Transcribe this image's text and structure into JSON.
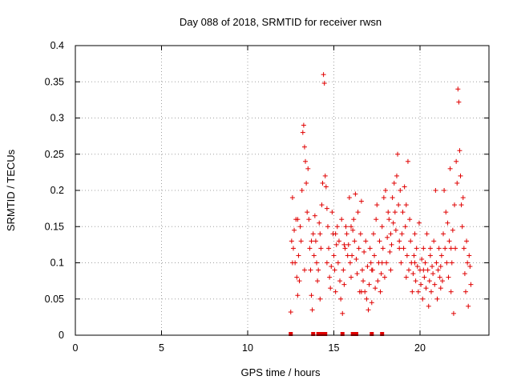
{
  "chart_data": {
    "type": "scatter",
    "title": "Day 088 of 2018, SRMTID for receiver rwsn",
    "xlabel": "GPS time / hours",
    "ylabel": "SRMTID / TECUs",
    "xlim": [
      0,
      24
    ],
    "ylim": [
      0,
      0.4
    ],
    "x_ticks": [
      0,
      5,
      10,
      15,
      20
    ],
    "y_ticks": [
      0,
      0.05,
      0.1,
      0.15,
      0.2,
      0.25,
      0.3,
      0.35,
      0.4
    ],
    "x_tick_labels": [
      "0",
      "5",
      "10",
      "15",
      "20"
    ],
    "y_tick_labels": [
      "0",
      "0.05",
      "0.1",
      "0.15",
      "0.2",
      "0.25",
      "0.3",
      "0.35",
      "0.4"
    ],
    "grid": true,
    "marker": "+",
    "color": "#e00000",
    "series": [
      {
        "name": "SRMTID",
        "points": [
          [
            12.5,
            0.032
          ],
          [
            12.55,
            0.13
          ],
          [
            12.6,
            0.19
          ],
          [
            12.65,
            0.12
          ],
          [
            12.7,
            0.145
          ],
          [
            12.75,
            0.1
          ],
          [
            12.8,
            0.16
          ],
          [
            12.85,
            0.08
          ],
          [
            12.9,
            0.055
          ],
          [
            12.95,
            0.11
          ],
          [
            13.0,
            0.075
          ],
          [
            13.05,
            0.15
          ],
          [
            13.1,
            0.13
          ],
          [
            13.15,
            0.2
          ],
          [
            13.2,
            0.28
          ],
          [
            13.25,
            0.29
          ],
          [
            13.3,
            0.26
          ],
          [
            13.35,
            0.24
          ],
          [
            13.4,
            0.21
          ],
          [
            13.45,
            0.17
          ],
          [
            13.5,
            0.23
          ],
          [
            13.55,
            0.16
          ],
          [
            13.6,
            0.12
          ],
          [
            13.65,
            0.09
          ],
          [
            13.7,
            0.055
          ],
          [
            13.75,
            0.035
          ],
          [
            13.8,
            0.14
          ],
          [
            13.85,
            0.11
          ],
          [
            13.9,
            0.165
          ],
          [
            13.95,
            0.13
          ],
          [
            14.0,
            0.1
          ],
          [
            14.05,
            0.075
          ],
          [
            14.1,
            0.09
          ],
          [
            14.15,
            0.155
          ],
          [
            14.2,
            0.14
          ],
          [
            14.25,
            0.12
          ],
          [
            14.3,
            0.18
          ],
          [
            14.35,
            0.21
          ],
          [
            14.4,
            0.36
          ],
          [
            14.45,
            0.348
          ],
          [
            14.5,
            0.22
          ],
          [
            14.55,
            0.205
          ],
          [
            14.6,
            0.175
          ],
          [
            14.65,
            0.15
          ],
          [
            14.7,
            0.12
          ],
          [
            14.75,
            0.08
          ],
          [
            14.8,
            0.065
          ],
          [
            14.85,
            0.095
          ],
          [
            14.9,
            0.17
          ],
          [
            14.95,
            0.14
          ],
          [
            15.0,
            0.11
          ],
          [
            15.05,
            0.09
          ],
          [
            15.1,
            0.06
          ],
          [
            15.15,
            0.125
          ],
          [
            15.2,
            0.15
          ],
          [
            15.25,
            0.1
          ],
          [
            15.3,
            0.13
          ],
          [
            15.35,
            0.075
          ],
          [
            15.4,
            0.05
          ],
          [
            15.45,
            0.16
          ],
          [
            15.5,
            0.03
          ],
          [
            15.55,
            0.09
          ],
          [
            15.6,
            0.07
          ],
          [
            15.65,
            0.12
          ],
          [
            15.7,
            0.15
          ],
          [
            15.75,
            0.14
          ],
          [
            15.8,
            0.11
          ],
          [
            15.85,
            0.125
          ],
          [
            15.9,
            0.19
          ],
          [
            15.95,
            0.1
          ],
          [
            16.0,
            0.08
          ],
          [
            16.05,
            0.11
          ],
          [
            16.1,
            0.145
          ],
          [
            16.15,
            0.16
          ],
          [
            16.2,
            0.13
          ],
          [
            16.25,
            0.195
          ],
          [
            16.3,
            0.105
          ],
          [
            16.35,
            0.085
          ],
          [
            16.4,
            0.17
          ],
          [
            16.45,
            0.12
          ],
          [
            16.5,
            0.06
          ],
          [
            16.55,
            0.14
          ],
          [
            16.6,
            0.185
          ],
          [
            16.65,
            0.09
          ],
          [
            16.7,
            0.075
          ],
          [
            16.75,
            0.115
          ],
          [
            16.8,
            0.06
          ],
          [
            16.85,
            0.13
          ],
          [
            16.9,
            0.05
          ],
          [
            16.95,
            0.095
          ],
          [
            17.0,
            0.035
          ],
          [
            17.05,
            0.07
          ],
          [
            17.1,
            0.12
          ],
          [
            17.15,
            0.1
          ],
          [
            17.2,
            0.045
          ],
          [
            17.25,
            0.09
          ],
          [
            17.3,
            0.14
          ],
          [
            17.35,
            0.11
          ],
          [
            17.4,
            0.065
          ],
          [
            17.45,
            0.16
          ],
          [
            17.5,
            0.18
          ],
          [
            17.55,
            0.075
          ],
          [
            17.6,
            0.1
          ],
          [
            17.65,
            0.13
          ],
          [
            17.7,
            0.06
          ],
          [
            17.75,
            0.085
          ],
          [
            17.8,
            0.15
          ],
          [
            17.85,
            0.12
          ],
          [
            17.9,
            0.19
          ],
          [
            17.95,
            0.08
          ],
          [
            18.0,
            0.2
          ],
          [
            18.05,
            0.1
          ],
          [
            18.1,
            0.135
          ],
          [
            18.15,
            0.17
          ],
          [
            18.2,
            0.16
          ],
          [
            18.25,
            0.115
          ],
          [
            18.3,
            0.14
          ],
          [
            18.35,
            0.125
          ],
          [
            18.4,
            0.19
          ],
          [
            18.45,
            0.155
          ],
          [
            18.5,
            0.21
          ],
          [
            18.55,
            0.17
          ],
          [
            18.6,
            0.145
          ],
          [
            18.65,
            0.22
          ],
          [
            18.7,
            0.25
          ],
          [
            18.75,
            0.18
          ],
          [
            18.8,
            0.13
          ],
          [
            18.85,
            0.2
          ],
          [
            18.9,
            0.1
          ],
          [
            18.95,
            0.14
          ],
          [
            19.0,
            0.17
          ],
          [
            19.05,
            0.12
          ],
          [
            19.1,
            0.205
          ],
          [
            19.15,
            0.15
          ],
          [
            19.2,
            0.08
          ],
          [
            19.25,
            0.11
          ],
          [
            19.3,
            0.24
          ],
          [
            19.35,
            0.09
          ],
          [
            19.4,
            0.16
          ],
          [
            19.45,
            0.13
          ],
          [
            19.5,
            0.1
          ],
          [
            19.55,
            0.06
          ],
          [
            19.6,
            0.085
          ],
          [
            19.65,
            0.11
          ],
          [
            19.7,
            0.14
          ],
          [
            19.75,
            0.075
          ],
          [
            19.8,
            0.12
          ],
          [
            19.85,
            0.095
          ],
          [
            19.9,
            0.06
          ],
          [
            19.95,
            0.155
          ],
          [
            20.0,
            0.09
          ],
          [
            20.05,
            0.07
          ],
          [
            20.1,
            0.105
          ],
          [
            20.15,
            0.05
          ],
          [
            20.2,
            0.12
          ],
          [
            20.25,
            0.08
          ],
          [
            20.3,
            0.1
          ],
          [
            20.35,
            0.065
          ],
          [
            20.4,
            0.14
          ],
          [
            20.45,
            0.09
          ],
          [
            20.5,
            0.04
          ],
          [
            20.55,
            0.075
          ],
          [
            20.6,
            0.11
          ],
          [
            20.65,
            0.06
          ],
          [
            20.7,
            0.095
          ],
          [
            20.75,
            0.085
          ],
          [
            20.8,
            0.13
          ],
          [
            20.85,
            0.07
          ],
          [
            20.9,
            0.2
          ],
          [
            20.95,
            0.1
          ],
          [
            21.0,
            0.05
          ],
          [
            21.05,
            0.09
          ],
          [
            21.1,
            0.12
          ],
          [
            21.15,
            0.08
          ],
          [
            21.2,
            0.065
          ],
          [
            21.25,
            0.11
          ],
          [
            21.3,
            0.075
          ],
          [
            21.35,
            0.14
          ],
          [
            21.4,
            0.2
          ],
          [
            21.45,
            0.12
          ],
          [
            21.5,
            0.17
          ],
          [
            21.55,
            0.1
          ],
          [
            21.6,
            0.155
          ],
          [
            21.65,
            0.08
          ],
          [
            21.7,
            0.13
          ],
          [
            21.75,
            0.23
          ],
          [
            21.8,
            0.06
          ],
          [
            21.85,
            0.1
          ],
          [
            21.9,
            0.145
          ],
          [
            21.95,
            0.03
          ],
          [
            22.0,
            0.18
          ],
          [
            22.05,
            0.12
          ],
          [
            22.1,
            0.24
          ],
          [
            22.15,
            0.21
          ],
          [
            22.2,
            0.34
          ],
          [
            22.25,
            0.322
          ],
          [
            22.3,
            0.255
          ],
          [
            22.35,
            0.22
          ],
          [
            22.4,
            0.18
          ],
          [
            22.45,
            0.15
          ],
          [
            22.5,
            0.19
          ],
          [
            22.55,
            0.12
          ],
          [
            22.6,
            0.085
          ],
          [
            22.65,
            0.06
          ],
          [
            22.7,
            0.13
          ],
          [
            22.75,
            0.1
          ],
          [
            22.8,
            0.04
          ],
          [
            22.85,
            0.11
          ],
          [
            22.9,
            0.095
          ],
          [
            22.95,
            0.07
          ],
          [
            12.6,
            0.1
          ],
          [
            12.9,
            0.16
          ],
          [
            13.3,
            0.09
          ],
          [
            13.7,
            0.13
          ],
          [
            14.2,
            0.05
          ],
          [
            14.6,
            0.1
          ],
          [
            15.1,
            0.14
          ],
          [
            15.6,
            0.125
          ],
          [
            16.0,
            0.15
          ],
          [
            16.6,
            0.06
          ],
          [
            17.2,
            0.09
          ],
          [
            17.8,
            0.1
          ],
          [
            18.3,
            0.09
          ],
          [
            18.8,
            0.12
          ],
          [
            19.2,
            0.18
          ],
          [
            19.7,
            0.1
          ],
          [
            20.2,
            0.09
          ],
          [
            20.6,
            0.12
          ],
          [
            21.2,
            0.095
          ],
          [
            21.8,
            0.12
          ]
        ]
      }
    ],
    "zero_markers_x": [
      12.5,
      13.8,
      14.1,
      14.3,
      14.5,
      15.5,
      16.1,
      16.3,
      17.2,
      17.8
    ]
  }
}
